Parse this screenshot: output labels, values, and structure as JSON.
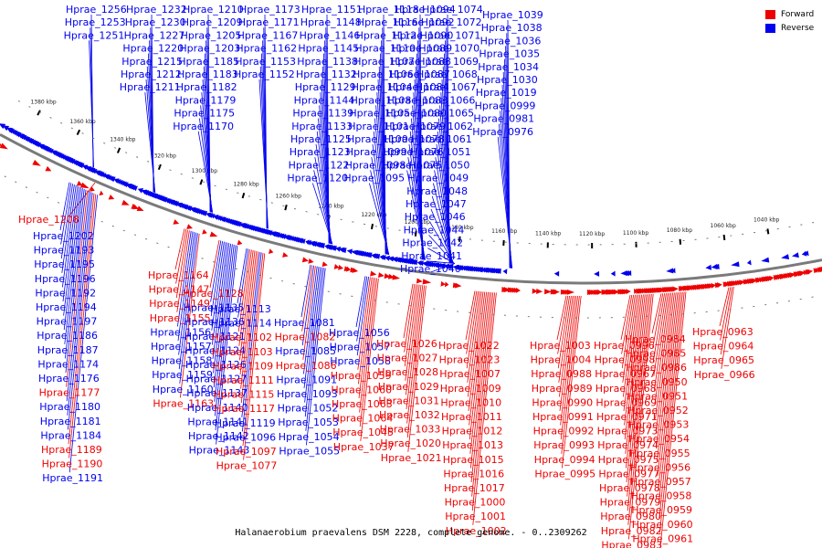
{
  "caption": "Halanaerobium praevalens DSM 2228, complete genome. - 0..2309262",
  "legend": [
    {
      "label": "Forward",
      "color": "#ee0000"
    },
    {
      "label": "Reverse",
      "color": "#0000ee"
    }
  ],
  "colors": {
    "forward": "#ee0000",
    "reverse": "#0000ee",
    "axis": "#555555"
  },
  "kbp_ticks": [
    "1380 kbp",
    "1360 kbp",
    "1340 kbp",
    "1320 kbp",
    "1300 kbp",
    "1280 kbp",
    "1260 kbp",
    "1240 kbp",
    "1220 kbp",
    "1200 kbp",
    "1180 kbp",
    "1160 kbp",
    "1140 kbp",
    "1120 kbp",
    "1100 kbp",
    "1080 kbp",
    "1060 kbp",
    "1040 kbp"
  ],
  "gene_labels": {
    "top_reverse": [
      "Hprae_1256",
      "Hprae_1253",
      "Hprae_1251",
      "Hprae_1232",
      "Hprae_1230",
      "Hprae_1227",
      "Hprae_1220",
      "Hprae_1215",
      "Hprae_1212",
      "Hprae_1211",
      "Hprae_1210",
      "Hprae_1209",
      "Hprae_1205",
      "Hprae_1203",
      "Hprae_1185",
      "Hprae_1183",
      "Hprae_1182",
      "Hprae_1179",
      "Hprae_1175",
      "Hprae_1170",
      "Hprae_1173",
      "Hprae_1171",
      "Hprae_1167",
      "Hprae_1162",
      "Hprae_1153",
      "Hprae_1152",
      "Hprae_1151",
      "Hprae_1148",
      "Hprae_1146",
      "Hprae_1145",
      "Hprae_1138",
      "Hprae_1132",
      "Hprae_1129",
      "Hprae_1144",
      "Hprae_1139",
      "Hprae_1133",
      "Hprae_1125",
      "Hprae_1123",
      "Hprae_1122",
      "Hprae_1120",
      "Hprae_1118",
      "Hprae_1116",
      "Hprae_1112",
      "Hprae_1110",
      "Hprae_1107",
      "Hprae_1106",
      "Hprae_1104",
      "Hprae_1108",
      "Hprae_1105",
      "Hprae_1101",
      "Hprae_1100",
      "Hprae_1099",
      "Hprae_1098",
      "Hprae_1095",
      "Hprae_1094",
      "Hprae_1092",
      "Hprae_1090",
      "Hprae_1089",
      "Hprae_1088",
      "Hprae_1087",
      "Hprae_1084",
      "Hprae_1083",
      "Hprae_1080",
      "Hprae_1079",
      "Hprae_1078",
      "Hprae_1076",
      "Hprae_1075",
      "Hprae_1074",
      "Hprae_1072",
      "Hprae_1071",
      "Hprae_1070",
      "Hprae_1069",
      "Hprae_1068",
      "Hprae_1067",
      "Hprae_1066",
      "Hprae_1065",
      "Hprae_1062",
      "Hprae_1061",
      "Hprae_1051",
      "Hprae_1050",
      "Hprae_1049",
      "Hprae_1048",
      "Hprae_1047",
      "Hprae_1046",
      "Hprae_1044",
      "Hprae_1042",
      "Hprae_1041",
      "Hprae_1040",
      "Hprae_1039",
      "Hprae_1038",
      "Hprae_1036",
      "Hprae_1035",
      "Hprae_1034",
      "Hprae_1030",
      "Hprae_1019",
      "Hprae_0999",
      "Hprae_0981",
      "Hprae_0976"
    ],
    "top_forward": [
      "Hprae_1208"
    ],
    "bottom": [
      {
        "t": "Hprae_1202",
        "s": "r"
      },
      {
        "t": "Hprae_1193",
        "s": "r"
      },
      {
        "t": "Hprae_1195",
        "s": "r"
      },
      {
        "t": "Hprae_1196",
        "s": "r"
      },
      {
        "t": "Hprae_1192",
        "s": "r"
      },
      {
        "t": "Hprae_1194",
        "s": "r"
      },
      {
        "t": "Hprae_1197",
        "s": "r"
      },
      {
        "t": "Hprae_1186",
        "s": "r"
      },
      {
        "t": "Hprae_1187",
        "s": "r"
      },
      {
        "t": "Hprae_1174",
        "s": "r"
      },
      {
        "t": "Hprae_1176",
        "s": "r"
      },
      {
        "t": "Hprae_1177",
        "s": "f"
      },
      {
        "t": "Hprae_1180",
        "s": "r"
      },
      {
        "t": "Hprae_1181",
        "s": "r"
      },
      {
        "t": "Hprae_1184",
        "s": "r"
      },
      {
        "t": "Hprae_1189",
        "s": "f"
      },
      {
        "t": "Hprae_1190",
        "s": "f"
      },
      {
        "t": "Hprae_1191",
        "s": "r"
      },
      {
        "t": "Hprae_1164",
        "s": "f"
      },
      {
        "t": "Hprae_1147",
        "s": "f"
      },
      {
        "t": "Hprae_1149",
        "s": "f"
      },
      {
        "t": "Hprae_1155",
        "s": "f"
      },
      {
        "t": "Hprae_1156",
        "s": "r"
      },
      {
        "t": "Hprae_1157",
        "s": "r"
      },
      {
        "t": "Hprae_1158",
        "s": "r"
      },
      {
        "t": "Hprae_1159",
        "s": "r"
      },
      {
        "t": "Hprae_1160",
        "s": "r"
      },
      {
        "t": "Hprae_1163",
        "s": "f"
      },
      {
        "t": "Hprae_1128",
        "s": "f"
      },
      {
        "t": "Hprae_1135",
        "s": "r"
      },
      {
        "t": "Hprae_1136",
        "s": "r"
      },
      {
        "t": "Hprae_1121",
        "s": "r"
      },
      {
        "t": "Hprae_1124",
        "s": "r"
      },
      {
        "t": "Hprae_1126",
        "s": "r"
      },
      {
        "t": "Hprae_1127",
        "s": "r"
      },
      {
        "t": "Hprae_1137",
        "s": "r"
      },
      {
        "t": "Hprae_1140",
        "s": "r"
      },
      {
        "t": "Hprae_1141",
        "s": "r"
      },
      {
        "t": "Hprae_1142",
        "s": "r"
      },
      {
        "t": "Hprae_1143",
        "s": "r"
      },
      {
        "t": "Hprae_1113",
        "s": "r"
      },
      {
        "t": "Hprae_1114",
        "s": "r"
      },
      {
        "t": "Hprae_1102",
        "s": "f"
      },
      {
        "t": "Hprae_1103",
        "s": "f"
      },
      {
        "t": "Hprae_1109",
        "s": "f"
      },
      {
        "t": "Hprae_1111",
        "s": "f"
      },
      {
        "t": "Hprae_1115",
        "s": "f"
      },
      {
        "t": "Hprae_1117",
        "s": "f"
      },
      {
        "t": "Hprae_1119",
        "s": "r"
      },
      {
        "t": "Hprae_1096",
        "s": "r"
      },
      {
        "t": "Hprae_1097",
        "s": "f"
      },
      {
        "t": "Hprae_1077",
        "s": "f"
      },
      {
        "t": "Hprae_1081",
        "s": "r"
      },
      {
        "t": "Hprae_1082",
        "s": "f"
      },
      {
        "t": "Hprae_1085",
        "s": "r"
      },
      {
        "t": "Hprae_1086",
        "s": "f"
      },
      {
        "t": "Hprae_1091",
        "s": "r"
      },
      {
        "t": "Hprae_1093",
        "s": "r"
      },
      {
        "t": "Hprae_1052",
        "s": "r"
      },
      {
        "t": "Hprae_1053",
        "s": "r"
      },
      {
        "t": "Hprae_1054",
        "s": "r"
      },
      {
        "t": "Hprae_1055",
        "s": "r"
      },
      {
        "t": "Hprae_1056",
        "s": "r"
      },
      {
        "t": "Hprae_1057",
        "s": "r"
      },
      {
        "t": "Hprae_1058",
        "s": "r"
      },
      {
        "t": "Hprae_1059",
        "s": "f"
      },
      {
        "t": "Hprae_1060",
        "s": "f"
      },
      {
        "t": "Hprae_1063",
        "s": "f"
      },
      {
        "t": "Hprae_1064",
        "s": "f"
      },
      {
        "t": "Hprae_1045",
        "s": "f"
      },
      {
        "t": "Hprae_1037",
        "s": "f"
      },
      {
        "t": "Hprae_1026",
        "s": "f"
      },
      {
        "t": "Hprae_1027",
        "s": "f"
      },
      {
        "t": "Hprae_1028",
        "s": "f"
      },
      {
        "t": "Hprae_1029",
        "s": "f"
      },
      {
        "t": "Hprae_1031",
        "s": "f"
      },
      {
        "t": "Hprae_1032",
        "s": "f"
      },
      {
        "t": "Hprae_1033",
        "s": "f"
      },
      {
        "t": "Hprae_1020",
        "s": "f"
      },
      {
        "t": "Hprae_1021",
        "s": "f"
      },
      {
        "t": "Hprae_1022",
        "s": "f"
      },
      {
        "t": "Hprae_1023",
        "s": "f"
      },
      {
        "t": "Hprae_1007",
        "s": "f"
      },
      {
        "t": "Hprae_1009",
        "s": "f"
      },
      {
        "t": "Hprae_1010",
        "s": "f"
      },
      {
        "t": "Hprae_1011",
        "s": "f"
      },
      {
        "t": "Hprae_1012",
        "s": "f"
      },
      {
        "t": "Hprae_1013",
        "s": "f"
      },
      {
        "t": "Hprae_1015",
        "s": "f"
      },
      {
        "t": "Hprae_1016",
        "s": "f"
      },
      {
        "t": "Hprae_1017",
        "s": "f"
      },
      {
        "t": "Hprae_1000",
        "s": "f"
      },
      {
        "t": "Hprae_1001",
        "s": "f"
      },
      {
        "t": "Hprae_1002",
        "s": "f"
      },
      {
        "t": "Hprae_1003",
        "s": "f"
      },
      {
        "t": "Hprae_1004",
        "s": "f"
      },
      {
        "t": "Hprae_0988",
        "s": "f"
      },
      {
        "t": "Hprae_0989",
        "s": "f"
      },
      {
        "t": "Hprae_0990",
        "s": "f"
      },
      {
        "t": "Hprae_0991",
        "s": "f"
      },
      {
        "t": "Hprae_0992",
        "s": "f"
      },
      {
        "t": "Hprae_0993",
        "s": "f"
      },
      {
        "t": "Hprae_0994",
        "s": "f"
      },
      {
        "t": "Hprae_0995",
        "s": "f"
      },
      {
        "t": "Hprae_0996",
        "s": "f"
      },
      {
        "t": "Hprae_0998",
        "s": "f"
      },
      {
        "t": "Hprae_0967",
        "s": "f"
      },
      {
        "t": "Hprae_0968",
        "s": "f"
      },
      {
        "t": "Hprae_0969",
        "s": "f"
      },
      {
        "t": "Hprae_0971",
        "s": "f"
      },
      {
        "t": "Hprae_0973",
        "s": "f"
      },
      {
        "t": "Hprae_0974",
        "s": "f"
      },
      {
        "t": "Hprae_0975",
        "s": "f"
      },
      {
        "t": "Hprae_0977",
        "s": "f"
      },
      {
        "t": "Hprae_0978",
        "s": "f"
      },
      {
        "t": "Hprae_0979",
        "s": "f"
      },
      {
        "t": "Hprae_0980",
        "s": "f"
      },
      {
        "t": "Hprae_0982",
        "s": "f"
      },
      {
        "t": "Hprae_0983",
        "s": "f"
      },
      {
        "t": "Hprae_0984",
        "s": "f"
      },
      {
        "t": "Hprae_0985",
        "s": "f"
      },
      {
        "t": "Hprae_0986",
        "s": "f"
      },
      {
        "t": "Hprae_0950",
        "s": "f"
      },
      {
        "t": "Hprae_0951",
        "s": "f"
      },
      {
        "t": "Hprae_0952",
        "s": "f"
      },
      {
        "t": "Hprae_0953",
        "s": "f"
      },
      {
        "t": "Hprae_0954",
        "s": "f"
      },
      {
        "t": "Hprae_0955",
        "s": "f"
      },
      {
        "t": "Hprae_0956",
        "s": "f"
      },
      {
        "t": "Hprae_0957",
        "s": "f"
      },
      {
        "t": "Hprae_0958",
        "s": "f"
      },
      {
        "t": "Hprae_0959",
        "s": "f"
      },
      {
        "t": "Hprae_0960",
        "s": "f"
      },
      {
        "t": "Hprae_0961",
        "s": "f"
      },
      {
        "t": "Hprae_0962",
        "s": "f"
      },
      {
        "t": "Hprae_0963",
        "s": "f"
      },
      {
        "t": "Hprae_0964",
        "s": "f"
      },
      {
        "t": "Hprae_0965",
        "s": "f"
      },
      {
        "t": "Hprae_0966",
        "s": "f"
      }
    ]
  }
}
